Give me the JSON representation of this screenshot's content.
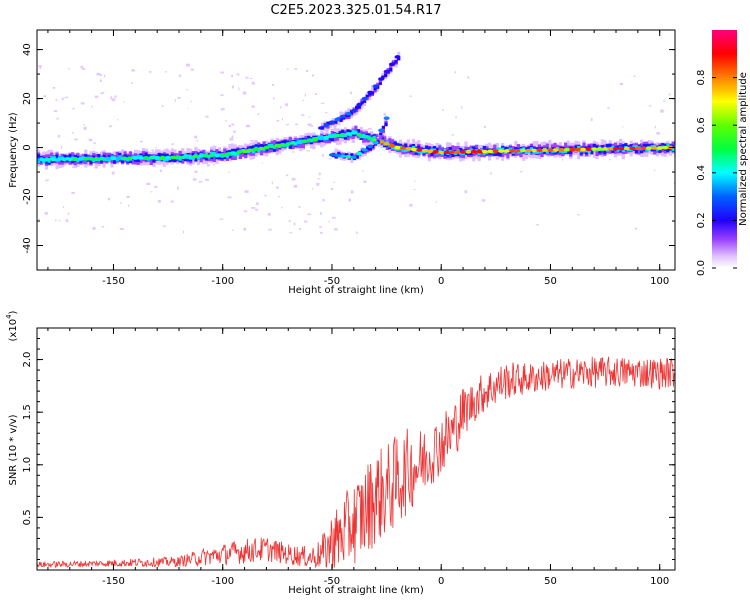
{
  "title": "C2E5.2023.325.01.54.R17",
  "colors": {
    "snr_line": "#ee3333",
    "axis": "#000000"
  },
  "chart_data": [
    {
      "type": "heatmap",
      "name": "spectrogram",
      "xlabel": "Height of straight line (km)",
      "ylabel": "Frequency (Hz)",
      "xlim": [
        -185,
        107
      ],
      "ylim": [
        -50,
        48
      ],
      "xticks": [
        -150,
        -100,
        -50,
        0,
        50,
        100
      ],
      "yticks": [
        -40,
        -20,
        0,
        20,
        40
      ],
      "colorbar": {
        "label": "Normalized spectral amplitude",
        "range": [
          0,
          1
        ],
        "ticks": [
          "0.0",
          "0.2",
          "0.4",
          "0.6",
          "0.8"
        ],
        "tick_values": [
          0,
          0.2,
          0.4,
          0.6,
          0.8
        ],
        "colormap": [
          "#ffffff",
          "#e0c0ff",
          "#7a00ff",
          "#0000ff",
          "#00ffff",
          "#00ff00",
          "#ffff00",
          "#ff8000",
          "#ff0000",
          "#ff007f"
        ]
      },
      "features": [
        {
          "desc": "main band",
          "x": [
            -185,
            -120,
            -100,
            -60,
            -40,
            -20,
            0,
            50,
            107
          ],
          "y": [
            -5,
            -4,
            -3,
            3,
            6,
            0,
            -2,
            -1,
            0
          ],
          "amplitude": [
            0.45,
            0.5,
            0.55,
            0.5,
            0.45,
            0.9,
            0.85,
            0.85,
            0.85
          ]
        },
        {
          "desc": "upper branch",
          "x": [
            -55,
            -40,
            -30,
            -20
          ],
          "y": [
            8,
            15,
            25,
            37
          ],
          "amplitude": [
            0.3,
            0.3,
            0.25,
            0.2
          ]
        },
        {
          "desc": "lower branch",
          "x": [
            -50,
            -40,
            -30,
            -25
          ],
          "y": [
            -3,
            -4,
            2,
            12
          ],
          "amplitude": [
            0.4,
            0.45,
            0.4,
            0.3
          ]
        }
      ]
    },
    {
      "type": "line",
      "name": "snr",
      "xlabel": "Height of straight line (km)",
      "ylabel": "SNR (10 * v/v)",
      "yscale_label": "(x10^4)",
      "xlim": [
        -185,
        107
      ],
      "ylim": [
        0,
        2.3
      ],
      "xticks": [
        -150,
        -100,
        -50,
        0,
        50,
        100
      ],
      "yticks": [
        0.5,
        1.0,
        1.5,
        2.0
      ],
      "ytick_labels": [
        "0.5",
        "1.0",
        "1.5",
        "2.0"
      ],
      "series": [
        {
          "x": [
            -185,
            -160,
            -140,
            -120,
            -110,
            -100,
            -90,
            -80,
            -70,
            -60,
            -55,
            -50,
            -45,
            -40,
            -35,
            -30,
            -25,
            -20,
            -15,
            -10,
            -5,
            0,
            5,
            10,
            15,
            20,
            30,
            40,
            50,
            60,
            70,
            80,
            90,
            100,
            107
          ],
          "y": [
            0.05,
            0.06,
            0.07,
            0.08,
            0.12,
            0.15,
            0.18,
            0.2,
            0.15,
            0.12,
            0.15,
            0.25,
            0.35,
            0.45,
            0.55,
            0.7,
            0.75,
            0.85,
            0.95,
            1.0,
            1.1,
            1.2,
            1.3,
            1.5,
            1.6,
            1.7,
            1.8,
            1.82,
            1.85,
            1.87,
            1.88,
            1.88,
            1.88,
            1.87,
            1.88
          ],
          "noise": [
            0.03,
            0.03,
            0.04,
            0.05,
            0.08,
            0.1,
            0.12,
            0.12,
            0.1,
            0.1,
            0.15,
            0.3,
            0.35,
            0.4,
            0.45,
            0.45,
            0.45,
            0.45,
            0.4,
            0.35,
            0.3,
            0.3,
            0.3,
            0.25,
            0.2,
            0.2,
            0.18,
            0.15,
            0.15,
            0.15,
            0.15,
            0.15,
            0.15,
            0.15,
            0.15
          ]
        }
      ]
    }
  ]
}
